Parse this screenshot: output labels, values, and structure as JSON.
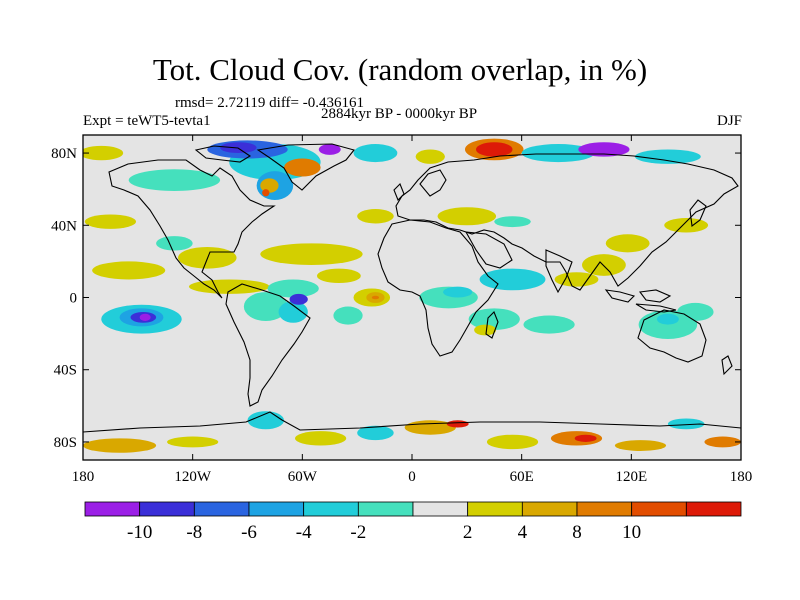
{
  "title": "Tot. Cloud Cov. (random overlap, in %)",
  "subtitle": {
    "stats": "rmsd= 2.72119  diff= -0.436161",
    "period": "2884kyr BP - 0000kyr BP",
    "experiment": "Expt = teWT5-tevta1",
    "season": "DJF"
  },
  "axes": {
    "x_ticks": [
      {
        "value": -180,
        "label": "180"
      },
      {
        "value": -120,
        "label": "120W"
      },
      {
        "value": -60,
        "label": "60W"
      },
      {
        "value": 0,
        "label": "0"
      },
      {
        "value": 60,
        "label": "60E"
      },
      {
        "value": 120,
        "label": "120E"
      },
      {
        "value": 180,
        "label": "180"
      }
    ],
    "y_ticks": [
      {
        "value": 80,
        "label": "80N"
      },
      {
        "value": 40,
        "label": "40N"
      },
      {
        "value": 0,
        "label": "0"
      },
      {
        "value": -40,
        "label": "40S"
      },
      {
        "value": -80,
        "label": "80S"
      }
    ],
    "lon_range": [
      -180,
      180
    ],
    "lat_range": [
      -90,
      90
    ]
  },
  "colorbar": {
    "colors": [
      "#9b1fe6",
      "#3b2fd8",
      "#2a64e0",
      "#1ea3e3",
      "#22cdd9",
      "#45e0bd",
      "#e4e4e4",
      "#d3cf00",
      "#d9a800",
      "#e07b00",
      "#e24d00",
      "#dd1a08"
    ],
    "labels": [
      {
        "boundary": 1,
        "label": "-10"
      },
      {
        "boundary": 2,
        "label": "-8"
      },
      {
        "boundary": 3,
        "label": "-6"
      },
      {
        "boundary": 4,
        "label": "-4"
      },
      {
        "boundary": 5,
        "label": "-2"
      },
      {
        "boundary": 7,
        "label": "2"
      },
      {
        "boundary": 8,
        "label": "4"
      },
      {
        "boundary": 9,
        "label": "8"
      },
      {
        "boundary": 10,
        "label": "10"
      }
    ]
  },
  "anomalies": [
    {
      "lon": -148,
      "lat": -12,
      "rx": 22,
      "ry": 8,
      "color": "#22cdd9"
    },
    {
      "lon": -148,
      "lat": -11,
      "rx": 12,
      "ry": 5,
      "color": "#1ea3e3"
    },
    {
      "lon": -147,
      "lat": -11,
      "rx": 7,
      "ry": 3,
      "color": "#3b2fd8"
    },
    {
      "lon": -146,
      "lat": -11,
      "rx": 3,
      "ry": 2,
      "color": "#9b1fe6"
    },
    {
      "lon": -155,
      "lat": 15,
      "rx": 20,
      "ry": 5,
      "color": "#d3cf00"
    },
    {
      "lon": -112,
      "lat": 22,
      "rx": 16,
      "ry": 6,
      "color": "#d3cf00"
    },
    {
      "lon": -100,
      "lat": 6,
      "rx": 22,
      "ry": 4,
      "color": "#d3cf00"
    },
    {
      "lon": -55,
      "lat": 24,
      "rx": 28,
      "ry": 6,
      "color": "#d3cf00"
    },
    {
      "lon": -165,
      "lat": 42,
      "rx": 14,
      "ry": 4,
      "color": "#d3cf00"
    },
    {
      "lon": -130,
      "lat": 30,
      "rx": 10,
      "ry": 4,
      "color": "#45e0bd"
    },
    {
      "lon": -65,
      "lat": 5,
      "rx": 14,
      "ry": 5,
      "color": "#45e0bd"
    },
    {
      "lon": -80,
      "lat": -5,
      "rx": 12,
      "ry": 8,
      "color": "#45e0bd"
    },
    {
      "lon": -65,
      "lat": -8,
      "rx": 8,
      "ry": 6,
      "color": "#22cdd9"
    },
    {
      "lon": -62,
      "lat": -1,
      "rx": 5,
      "ry": 3,
      "color": "#3b2fd8"
    },
    {
      "lon": -40,
      "lat": 12,
      "rx": 12,
      "ry": 4,
      "color": "#d3cf00"
    },
    {
      "lon": -22,
      "lat": 0,
      "rx": 10,
      "ry": 5,
      "color": "#d3cf00"
    },
    {
      "lon": -20,
      "lat": 0,
      "rx": 5,
      "ry": 3,
      "color": "#d9a800"
    },
    {
      "lon": -20,
      "lat": 0,
      "rx": 2,
      "ry": 1,
      "color": "#e07b00"
    },
    {
      "lon": -35,
      "lat": -10,
      "rx": 8,
      "ry": 5,
      "color": "#45e0bd"
    },
    {
      "lon": 20,
      "lat": 0,
      "rx": 16,
      "ry": 6,
      "color": "#45e0bd"
    },
    {
      "lon": 25,
      "lat": 3,
      "rx": 8,
      "ry": 3,
      "color": "#22cdd9"
    },
    {
      "lon": 55,
      "lat": 10,
      "rx": 18,
      "ry": 6,
      "color": "#22cdd9"
    },
    {
      "lon": 45,
      "lat": -12,
      "rx": 14,
      "ry": 6,
      "color": "#45e0bd"
    },
    {
      "lon": 40,
      "lat": -18,
      "rx": 6,
      "ry": 3,
      "color": "#d3cf00"
    },
    {
      "lon": 75,
      "lat": -15,
      "rx": 14,
      "ry": 5,
      "color": "#45e0bd"
    },
    {
      "lon": 90,
      "lat": 10,
      "rx": 12,
      "ry": 4,
      "color": "#d3cf00"
    },
    {
      "lon": 105,
      "lat": 18,
      "rx": 12,
      "ry": 6,
      "color": "#d3cf00"
    },
    {
      "lon": 118,
      "lat": 30,
      "rx": 12,
      "ry": 5,
      "color": "#d3cf00"
    },
    {
      "lon": 140,
      "lat": -15,
      "rx": 16,
      "ry": 8,
      "color": "#45e0bd"
    },
    {
      "lon": 140,
      "lat": -12,
      "rx": 6,
      "ry": 3,
      "color": "#22cdd9"
    },
    {
      "lon": 155,
      "lat": -8,
      "rx": 10,
      "ry": 5,
      "color": "#45e0bd"
    },
    {
      "lon": 30,
      "lat": 45,
      "rx": 16,
      "ry": 5,
      "color": "#d3cf00"
    },
    {
      "lon": 55,
      "lat": 42,
      "rx": 10,
      "ry": 3,
      "color": "#45e0bd"
    },
    {
      "lon": 150,
      "lat": 40,
      "rx": 12,
      "ry": 4,
      "color": "#d3cf00"
    },
    {
      "lon": -20,
      "lat": 45,
      "rx": 10,
      "ry": 4,
      "color": "#d3cf00"
    },
    {
      "lon": -130,
      "lat": 65,
      "rx": 25,
      "ry": 6,
      "color": "#45e0bd"
    },
    {
      "lon": -75,
      "lat": 75,
      "rx": 25,
      "ry": 10,
      "color": "#22cdd9"
    },
    {
      "lon": -75,
      "lat": 62,
      "rx": 10,
      "ry": 8,
      "color": "#1ea3e3"
    },
    {
      "lon": -78,
      "lat": 62,
      "rx": 5,
      "ry": 4,
      "color": "#d9a800"
    },
    {
      "lon": -80,
      "lat": 58,
      "rx": 2,
      "ry": 2,
      "color": "#e24d00"
    },
    {
      "lon": -60,
      "lat": 72,
      "rx": 10,
      "ry": 5,
      "color": "#e07b00"
    },
    {
      "lon": -90,
      "lat": 82,
      "rx": 22,
      "ry": 5,
      "color": "#2a64e0"
    },
    {
      "lon": -95,
      "lat": 83,
      "rx": 10,
      "ry": 3,
      "color": "#3b2fd8"
    },
    {
      "lon": -45,
      "lat": 82,
      "rx": 6,
      "ry": 3,
      "color": "#9b1fe6"
    },
    {
      "lon": -20,
      "lat": 80,
      "rx": 12,
      "ry": 5,
      "color": "#22cdd9"
    },
    {
      "lon": 10,
      "lat": 78,
      "rx": 8,
      "ry": 4,
      "color": "#d3cf00"
    },
    {
      "lon": 45,
      "lat": 82,
      "rx": 16,
      "ry": 6,
      "color": "#e07b00"
    },
    {
      "lon": 45,
      "lat": 82,
      "rx": 10,
      "ry": 4,
      "color": "#dd1a08"
    },
    {
      "lon": 80,
      "lat": 80,
      "rx": 20,
      "ry": 5,
      "color": "#22cdd9"
    },
    {
      "lon": 105,
      "lat": 82,
      "rx": 14,
      "ry": 4,
      "color": "#9b1fe6"
    },
    {
      "lon": 140,
      "lat": 78,
      "rx": 18,
      "ry": 4,
      "color": "#22cdd9"
    },
    {
      "lon": -170,
      "lat": 80,
      "rx": 12,
      "ry": 4,
      "color": "#d3cf00"
    },
    {
      "lon": -160,
      "lat": -82,
      "rx": 20,
      "ry": 4,
      "color": "#d9a800"
    },
    {
      "lon": -120,
      "lat": -80,
      "rx": 14,
      "ry": 3,
      "color": "#d3cf00"
    },
    {
      "lon": -80,
      "lat": -68,
      "rx": 10,
      "ry": 5,
      "color": "#22cdd9"
    },
    {
      "lon": -50,
      "lat": -78,
      "rx": 14,
      "ry": 4,
      "color": "#d3cf00"
    },
    {
      "lon": -20,
      "lat": -75,
      "rx": 10,
      "ry": 4,
      "color": "#22cdd9"
    },
    {
      "lon": 10,
      "lat": -72,
      "rx": 14,
      "ry": 4,
      "color": "#d9a800"
    },
    {
      "lon": 25,
      "lat": -70,
      "rx": 6,
      "ry": 2,
      "color": "#dd1a08"
    },
    {
      "lon": 55,
      "lat": -80,
      "rx": 14,
      "ry": 4,
      "color": "#d3cf00"
    },
    {
      "lon": 90,
      "lat": -78,
      "rx": 14,
      "ry": 4,
      "color": "#e07b00"
    },
    {
      "lon": 95,
      "lat": -78,
      "rx": 6,
      "ry": 2,
      "color": "#dd1a08"
    },
    {
      "lon": 125,
      "lat": -82,
      "rx": 14,
      "ry": 3,
      "color": "#d9a800"
    },
    {
      "lon": 150,
      "lat": -70,
      "rx": 10,
      "ry": 3,
      "color": "#22cdd9"
    },
    {
      "lon": 170,
      "lat": -80,
      "rx": 10,
      "ry": 3,
      "color": "#e07b00"
    }
  ]
}
